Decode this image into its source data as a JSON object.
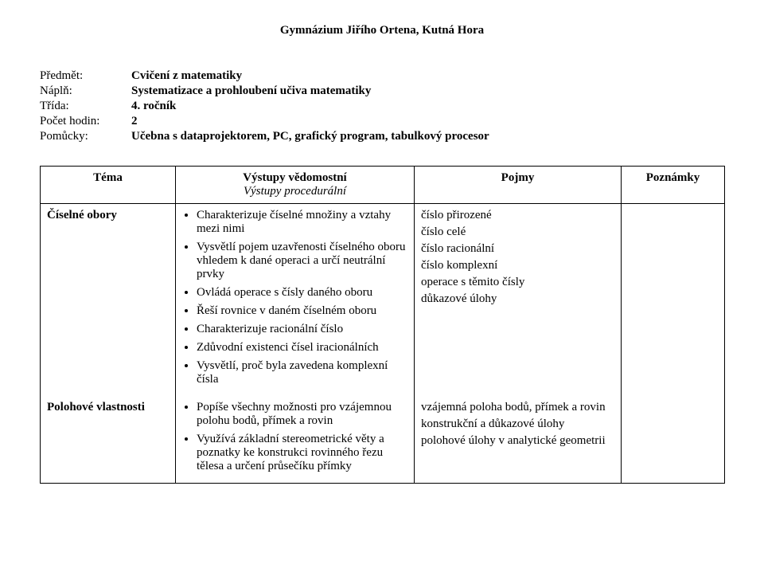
{
  "header": {
    "title": "Gymnázium Jiřího Ortena, Kutná Hora"
  },
  "meta": {
    "rows": [
      {
        "label": "Předmět:",
        "value": "Cvičení z matematiky",
        "bold": true
      },
      {
        "label": "Náplň:",
        "value": "Systematizace a prohloubení učiva matematiky",
        "bold": true
      },
      {
        "label": "Třída:",
        "value": "4. ročník",
        "bold": true
      },
      {
        "label": "Počet hodin:",
        "value": "2",
        "bold": true
      },
      {
        "label": "Pomůcky:",
        "value": "Učebna s dataprojektorem, PC, grafický program, tabulkový procesor",
        "bold": true
      }
    ]
  },
  "table": {
    "headers": {
      "topic": "Téma",
      "vystupy_line1": "Výstupy vědomostní",
      "vystupy_line2": "Výstupy procedurální",
      "pojmy": "Pojmy",
      "poznamky": "Poznámky"
    },
    "row1": {
      "topic": "Číselné obory",
      "bullets": [
        "Charakterizuje číselné množiny a vztahy mezi nimi",
        "Vysvětlí pojem uzavřenosti číselného oboru vhledem k dané operaci a určí neutrální prvky",
        "Ovládá operace s čísly daného oboru",
        "Řeší rovnice v daném číselném oboru",
        "Charakterizuje racionální číslo",
        "Zdůvodní existenci čísel iracionálních",
        "Vysvětlí, proč byla zavedena komplexní čísla"
      ],
      "pojmy": [
        "číslo přirozené",
        "číslo celé",
        "číslo  racionální",
        "číslo  komplexní",
        "operace s těmito čísly",
        "důkazové úlohy"
      ]
    },
    "row2": {
      "topic": "Polohové vlastnosti",
      "bullets": [
        "Popíše všechny možnosti pro vzájemnou polohu bodů, přímek a rovin",
        "Využívá základní stereometrické věty a poznatky ke konstrukci rovinného řezu tělesa a určení průsečíku přímky"
      ],
      "pojmy": [
        "vzájemná poloha bodů, přímek a rovin",
        "konstrukční a důkazové úlohy",
        "polohové úlohy v analytické geometrii"
      ]
    }
  }
}
